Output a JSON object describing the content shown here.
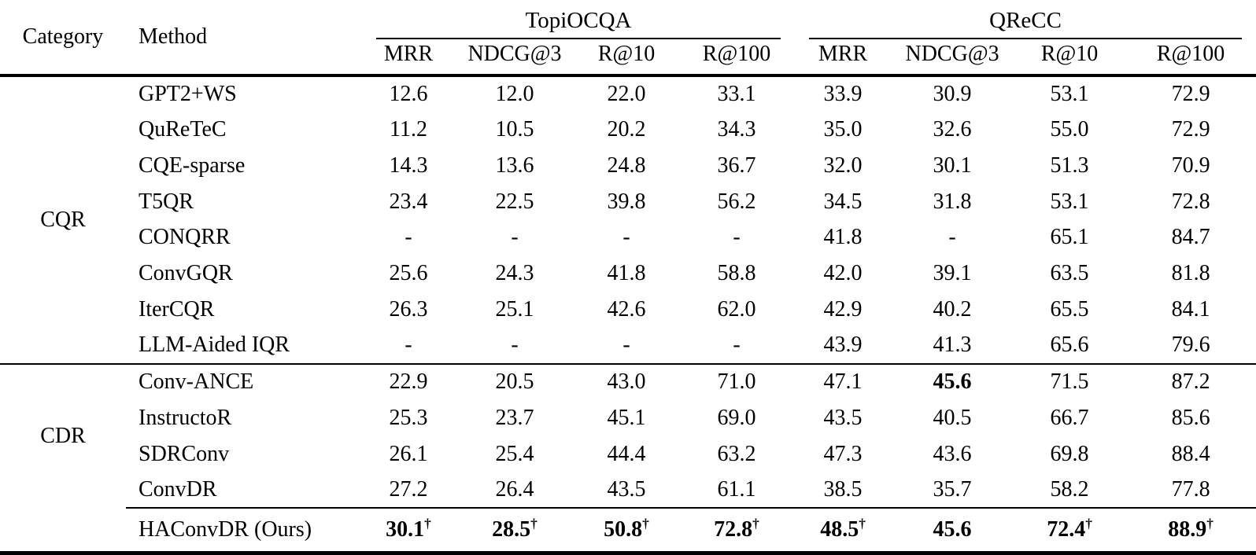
{
  "meta": {
    "background": "#ffffff",
    "text_color": "#000000",
    "rule_color": "#000000",
    "dagger": "†"
  },
  "table": {
    "header": {
      "category": "Category",
      "method": "Method",
      "groups": [
        "TopiOCQA",
        "QReCC"
      ],
      "metrics": [
        "MRR",
        "NDCG@3",
        "R@10",
        "R@100"
      ]
    },
    "sections": [
      {
        "category": "CQR",
        "rows": [
          {
            "method": "GPT2+WS",
            "values": [
              "12.6",
              "12.0",
              "22.0",
              "33.1",
              "33.9",
              "30.9",
              "53.1",
              "72.9"
            ]
          },
          {
            "method": "QuReTeC",
            "values": [
              "11.2",
              "10.5",
              "20.2",
              "34.3",
              "35.0",
              "32.6",
              "55.0",
              "72.9"
            ]
          },
          {
            "method": "CQE-sparse",
            "values": [
              "14.3",
              "13.6",
              "24.8",
              "36.7",
              "32.0",
              "30.1",
              "51.3",
              "70.9"
            ]
          },
          {
            "method": "T5QR",
            "values": [
              "23.4",
              "22.5",
              "39.8",
              "56.2",
              "34.5",
              "31.8",
              "53.1",
              "72.8"
            ]
          },
          {
            "method": "CONQRR",
            "values": [
              "-",
              "-",
              "-",
              "-",
              "41.8",
              "-",
              "65.1",
              "84.7"
            ]
          },
          {
            "method": "ConvGQR",
            "values": [
              "25.6",
              "24.3",
              "41.8",
              "58.8",
              "42.0",
              "39.1",
              "63.5",
              "81.8"
            ]
          },
          {
            "method": "IterCQR",
            "values": [
              "26.3",
              "25.1",
              "42.6",
              "62.0",
              "42.9",
              "40.2",
              "65.5",
              "84.1"
            ]
          },
          {
            "method": "LLM-Aided IQR",
            "values": [
              "-",
              "-",
              "-",
              "-",
              "43.9",
              "41.3",
              "65.6",
              "79.6"
            ]
          }
        ]
      },
      {
        "category": "CDR",
        "rows": [
          {
            "method": "Conv-ANCE",
            "values": [
              "22.9",
              "20.5",
              "43.0",
              "71.0",
              "47.1",
              {
                "text": "45.6",
                "bold": true
              },
              "71.5",
              "87.2"
            ]
          },
          {
            "method": "InstructoR",
            "values": [
              "25.3",
              "23.7",
              "45.1",
              "69.0",
              "43.5",
              "40.5",
              "66.7",
              "85.6"
            ]
          },
          {
            "method": "SDRConv",
            "values": [
              "26.1",
              "25.4",
              "44.4",
              "63.2",
              "47.3",
              "43.6",
              "69.8",
              "88.4"
            ]
          },
          {
            "method": "ConvDR",
            "values": [
              "27.2",
              "26.4",
              "43.5",
              "61.1",
              "38.5",
              "35.7",
              "58.2",
              "77.8"
            ]
          }
        ]
      }
    ],
    "final_row": {
      "method": "HAConvDR (Ours)",
      "values": [
        {
          "text": "30.1",
          "bold": true,
          "dagger": true
        },
        {
          "text": "28.5",
          "bold": true,
          "dagger": true
        },
        {
          "text": "50.8",
          "bold": true,
          "dagger": true
        },
        {
          "text": "72.8",
          "bold": true,
          "dagger": true
        },
        {
          "text": "48.5",
          "bold": true,
          "dagger": true
        },
        {
          "text": "45.6",
          "bold": true
        },
        {
          "text": "72.4",
          "bold": true,
          "dagger": true
        },
        {
          "text": "88.9",
          "bold": true,
          "dagger": true
        }
      ]
    }
  }
}
